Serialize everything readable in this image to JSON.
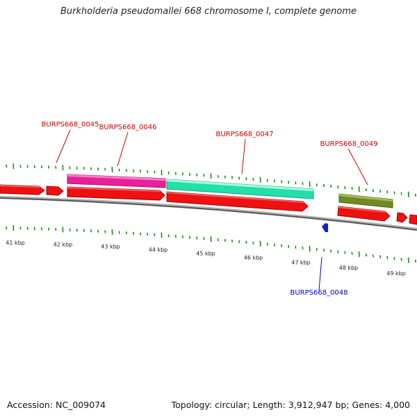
{
  "title": "Burkholderia pseudomallei 668 chromosome I, complete genome",
  "footer": {
    "accession": "Accession: NC_009074",
    "summary": "Topology: circular; Length: 3,912,947 bp; Genes: 4,000"
  },
  "colors": {
    "backbone": "#8a8a8a",
    "cds_red": "#ee1111",
    "tick_green": "#1a8a1a",
    "label_red": "#cc0000",
    "label_blue": "#0000cc",
    "gene_magenta": "#e8209a",
    "gene_cyan": "#22e0a8",
    "gene_olive": "#6f8a22",
    "gene_blue": "#1020dd"
  },
  "ruler_labels": [
    "41 kbp",
    "42 kbp",
    "43 kbp",
    "44 kbp",
    "45 kbp",
    "46 kbp",
    "47 kbp",
    "48 kbp",
    "49 kbp"
  ],
  "gene_labels": [
    {
      "text": "BURPS668_0045",
      "color": "label_red"
    },
    {
      "text": "BURPS668_0046",
      "color": "label_red"
    },
    {
      "text": "BURPS668_0047",
      "color": "label_red"
    },
    {
      "text": "BURPS668_0049",
      "color": "label_red"
    },
    {
      "text": "BURPS668_0048",
      "color": "label_blue"
    }
  ]
}
